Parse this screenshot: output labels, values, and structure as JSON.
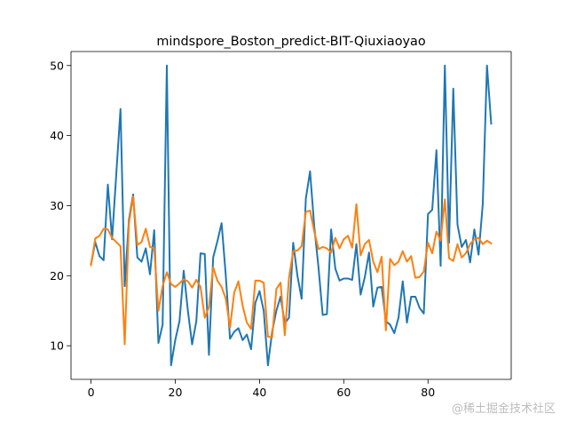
{
  "chart_data": {
    "type": "line",
    "title": "mindspore_Boston_predict-BIT-Qiuxiaoyao",
    "xlabel": "",
    "ylabel": "",
    "xlim": [
      -4.75,
      99.75
    ],
    "ylim": [
      5.2,
      52.0
    ],
    "xticks": [
      0,
      20,
      40,
      60,
      80
    ],
    "yticks": [
      10,
      20,
      30,
      40,
      50
    ],
    "grid": false,
    "legend": "none",
    "series": [
      {
        "color": "#1f77b4",
        "x": [
          0,
          1,
          2,
          3,
          4,
          5,
          6,
          7,
          8,
          9,
          10,
          11,
          12,
          13,
          14,
          15,
          16,
          17,
          18,
          19,
          20,
          21,
          22,
          23,
          24,
          25,
          26,
          27,
          28,
          29,
          30,
          31,
          32,
          33,
          34,
          35,
          36,
          37,
          38,
          39,
          40,
          41,
          42,
          43,
          44,
          45,
          46,
          47,
          48,
          49,
          50,
          51,
          52,
          53,
          54,
          55,
          56,
          57,
          58,
          59,
          60,
          61,
          62,
          63,
          64,
          65,
          66,
          67,
          68,
          69,
          70,
          71,
          72,
          73,
          74,
          75,
          76,
          77,
          78,
          79,
          80,
          81,
          82,
          83,
          84,
          85,
          86,
          87,
          88,
          89,
          90,
          91,
          92,
          93,
          94,
          95
        ],
        "y": [
          21.6,
          24.8,
          22.8,
          22.2,
          33.0,
          25.2,
          34.5,
          43.8,
          18.5,
          28.0,
          31.6,
          22.6,
          22.0,
          23.9,
          20.2,
          26.5,
          10.4,
          13.0,
          50.0,
          7.2,
          10.8,
          13.5,
          20.7,
          15.0,
          10.2,
          13.5,
          23.2,
          23.1,
          8.7,
          22.6,
          24.9,
          27.5,
          20.0,
          11.0,
          12.0,
          12.5,
          10.8,
          11.6,
          9.5,
          16.1,
          17.8,
          15.0,
          7.2,
          12.0,
          15.0,
          17.0,
          13.2,
          14.0,
          24.7,
          20.0,
          16.7,
          31.0,
          34.9,
          27.0,
          21.2,
          14.4,
          14.5,
          26.6,
          21.0,
          19.3,
          19.6,
          19.6,
          19.4,
          24.5,
          17.3,
          19.8,
          23.3,
          15.6,
          18.3,
          18.4,
          13.5,
          13.0,
          11.8,
          14.0,
          19.2,
          13.3,
          17.0,
          17.0,
          15.4,
          14.6,
          28.8,
          29.4,
          37.9,
          21.4,
          50.0,
          24.7,
          46.7,
          27.3,
          24.1,
          25.1,
          21.9,
          26.6,
          23.0,
          30.2,
          50.0,
          41.7
        ]
      },
      {
        "color": "#ff7f0e",
        "x": [
          0,
          1,
          2,
          3,
          4,
          5,
          6,
          7,
          8,
          9,
          10,
          11,
          12,
          13,
          14,
          15,
          16,
          17,
          18,
          19,
          20,
          21,
          22,
          23,
          24,
          25,
          26,
          27,
          28,
          29,
          30,
          31,
          32,
          33,
          34,
          35,
          36,
          37,
          38,
          39,
          40,
          41,
          42,
          43,
          44,
          45,
          46,
          47,
          48,
          49,
          50,
          51,
          52,
          53,
          54,
          55,
          56,
          57,
          58,
          59,
          60,
          61,
          62,
          63,
          64,
          65,
          66,
          67,
          68,
          69,
          70,
          71,
          72,
          73,
          74,
          75,
          76,
          77,
          78,
          79,
          80,
          81,
          82,
          83,
          84,
          85,
          86,
          87,
          88,
          89,
          90,
          91,
          92,
          93,
          94,
          95
        ],
        "y": [
          21.5,
          25.3,
          25.7,
          26.7,
          26.6,
          25.4,
          24.8,
          24.2,
          10.2,
          27.5,
          31.3,
          24.4,
          24.8,
          26.7,
          24.1,
          23.9,
          15.0,
          18.5,
          20.5,
          18.8,
          18.4,
          18.9,
          19.5,
          19.2,
          18.3,
          19.4,
          18.4,
          14.0,
          15.5,
          21.2,
          19.3,
          18.4,
          16.7,
          12.6,
          17.6,
          19.2,
          15.7,
          13.3,
          12.4,
          19.3,
          19.3,
          19.0,
          11.3,
          11.2,
          18.1,
          19.0,
          11.5,
          19.7,
          23.5,
          23.6,
          24.2,
          29.1,
          29.3,
          26.3,
          23.8,
          24.1,
          23.9,
          23.3,
          25.4,
          23.9,
          25.2,
          25.7,
          24.0,
          30.2,
          22.9,
          24.5,
          25.1,
          22.0,
          20.5,
          22.7,
          12.2,
          22.4,
          21.5,
          22.0,
          23.5,
          22.0,
          22.8,
          19.7,
          19.8,
          20.6,
          24.7,
          23.2,
          26.3,
          25.0,
          30.9,
          22.5,
          22.1,
          24.5,
          22.6,
          23.2,
          24.5,
          25.2,
          25.4,
          24.5,
          25.0,
          24.6
        ]
      }
    ]
  },
  "watermark": "@稀土掘金技术社区"
}
